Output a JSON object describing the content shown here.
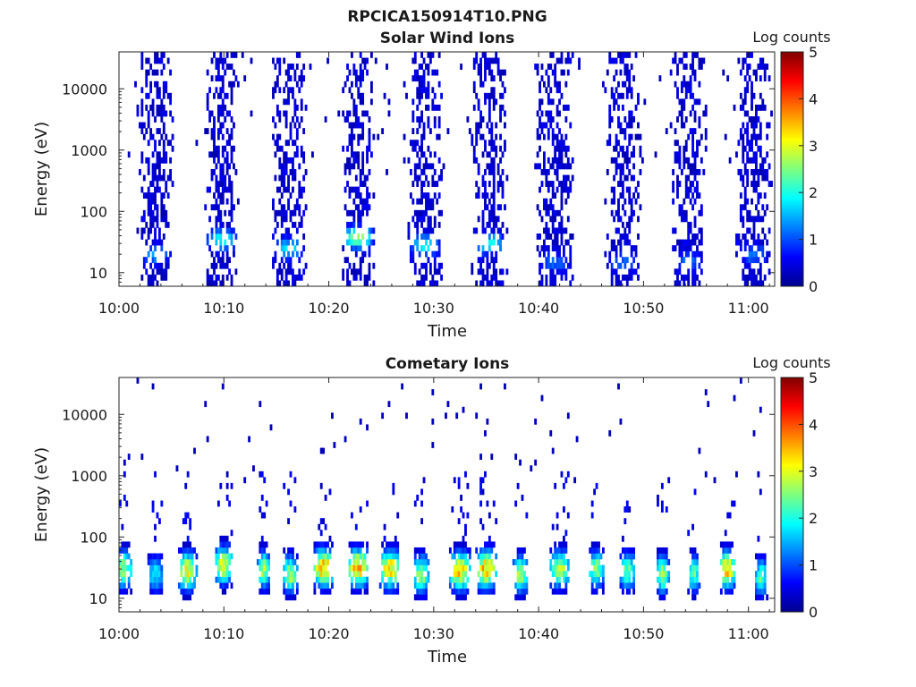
{
  "figure_title": "RPCICA150914T10.PNG",
  "chart_data": [
    {
      "type": "heatmap",
      "title": "Solar Wind Ions",
      "xlabel": "Time",
      "ylabel": "Energy (eV)",
      "xticks": [
        "10:00",
        "10:10",
        "10:20",
        "10:30",
        "10:40",
        "10:50",
        "11:00"
      ],
      "xlim_minutes": [
        0,
        62.5
      ],
      "yscale": "log",
      "ylim": [
        6,
        40000
      ],
      "yticks": [
        10,
        100,
        1000,
        10000
      ],
      "ytick_labels": [
        "10",
        "100",
        "1000",
        "10000"
      ],
      "colorbar": {
        "label": "Log counts",
        "range": [
          0,
          5
        ],
        "ticks": [
          "0",
          "1",
          "2",
          "3",
          "4",
          "5"
        ],
        "colormap": "jet"
      },
      "bursts": [
        {
          "center_min": 3.5,
          "width_min": 3.5,
          "peak_log_counts": 1.3,
          "peak_energy_ev": 20
        },
        {
          "center_min": 9.8,
          "width_min": 3.5,
          "peak_log_counts": 1.8,
          "peak_energy_ev": 35
        },
        {
          "center_min": 16.2,
          "width_min": 3.5,
          "peak_log_counts": 1.6,
          "peak_energy_ev": 25
        },
        {
          "center_min": 22.8,
          "width_min": 3.5,
          "peak_log_counts": 2.6,
          "peak_energy_ev": 38
        },
        {
          "center_min": 29.2,
          "width_min": 3.5,
          "peak_log_counts": 1.8,
          "peak_energy_ev": 28
        },
        {
          "center_min": 35.3,
          "width_min": 3.5,
          "peak_log_counts": 1.8,
          "peak_energy_ev": 30
        },
        {
          "center_min": 41.5,
          "width_min": 4,
          "peak_log_counts": 1.0,
          "peak_energy_ev": 15
        },
        {
          "center_min": 48.0,
          "width_min": 3.5,
          "peak_log_counts": 1.0,
          "peak_energy_ev": 15
        },
        {
          "center_min": 54.3,
          "width_min": 3.5,
          "peak_log_counts": 1.0,
          "peak_energy_ev": 15
        },
        {
          "center_min": 60.5,
          "width_min": 3.5,
          "peak_log_counts": 1.1,
          "peak_energy_ev": 20
        }
      ]
    },
    {
      "type": "heatmap",
      "title": "Cometary Ions",
      "xlabel": "Time",
      "ylabel": "Energy (eV)",
      "xticks": [
        "10:00",
        "10:10",
        "10:20",
        "10:30",
        "10:40",
        "10:50",
        "11:00"
      ],
      "xlim_minutes": [
        0,
        62.5
      ],
      "yscale": "log",
      "ylim": [
        6,
        40000
      ],
      "yticks": [
        10,
        100,
        1000,
        10000
      ],
      "ytick_labels": [
        "10",
        "100",
        "1000",
        "10000"
      ],
      "colorbar": {
        "label": "Log counts",
        "range": [
          0,
          5
        ],
        "ticks": [
          "0",
          "1",
          "2",
          "3",
          "4",
          "5"
        ],
        "colormap": "jet"
      },
      "bursts": [
        {
          "center_min": 0.5,
          "width_min": 1.5,
          "peak_log_counts": 3.0,
          "peak_energy_ev": 30
        },
        {
          "center_min": 3.5,
          "width_min": 1.5,
          "peak_log_counts": 2.0,
          "peak_energy_ev": 25
        },
        {
          "center_min": 6.5,
          "width_min": 1.8,
          "peak_log_counts": 3.5,
          "peak_energy_ev": 28
        },
        {
          "center_min": 10.0,
          "width_min": 1.8,
          "peak_log_counts": 3.3,
          "peak_energy_ev": 35
        },
        {
          "center_min": 13.8,
          "width_min": 1.2,
          "peak_log_counts": 3.0,
          "peak_energy_ev": 30
        },
        {
          "center_min": 16.3,
          "width_min": 1.5,
          "peak_log_counts": 3.0,
          "peak_energy_ev": 25
        },
        {
          "center_min": 19.5,
          "width_min": 2.0,
          "peak_log_counts": 3.8,
          "peak_energy_ev": 32
        },
        {
          "center_min": 22.8,
          "width_min": 2.0,
          "peak_log_counts": 3.8,
          "peak_energy_ev": 32
        },
        {
          "center_min": 25.8,
          "width_min": 2.0,
          "peak_log_counts": 3.7,
          "peak_energy_ev": 30
        },
        {
          "center_min": 28.8,
          "width_min": 1.5,
          "peak_log_counts": 3.0,
          "peak_energy_ev": 25
        },
        {
          "center_min": 32.5,
          "width_min": 2.0,
          "peak_log_counts": 3.7,
          "peak_energy_ev": 28
        },
        {
          "center_min": 35.0,
          "width_min": 2.0,
          "peak_log_counts": 3.8,
          "peak_energy_ev": 30
        },
        {
          "center_min": 38.3,
          "width_min": 1.5,
          "peak_log_counts": 3.0,
          "peak_energy_ev": 25
        },
        {
          "center_min": 42.0,
          "width_min": 2.0,
          "peak_log_counts": 3.0,
          "peak_energy_ev": 30
        },
        {
          "center_min": 45.5,
          "width_min": 1.5,
          "peak_log_counts": 2.8,
          "peak_energy_ev": 30
        },
        {
          "center_min": 48.5,
          "width_min": 1.5,
          "peak_log_counts": 2.7,
          "peak_energy_ev": 28
        },
        {
          "center_min": 51.8,
          "width_min": 1.2,
          "peak_log_counts": 3.0,
          "peak_energy_ev": 25
        },
        {
          "center_min": 54.8,
          "width_min": 1.2,
          "peak_log_counts": 2.5,
          "peak_energy_ev": 25
        },
        {
          "center_min": 58.0,
          "width_min": 1.5,
          "peak_log_counts": 3.7,
          "peak_energy_ev": 30
        },
        {
          "center_min": 61.2,
          "width_min": 1.2,
          "peak_log_counts": 2.5,
          "peak_energy_ev": 22
        }
      ]
    }
  ]
}
